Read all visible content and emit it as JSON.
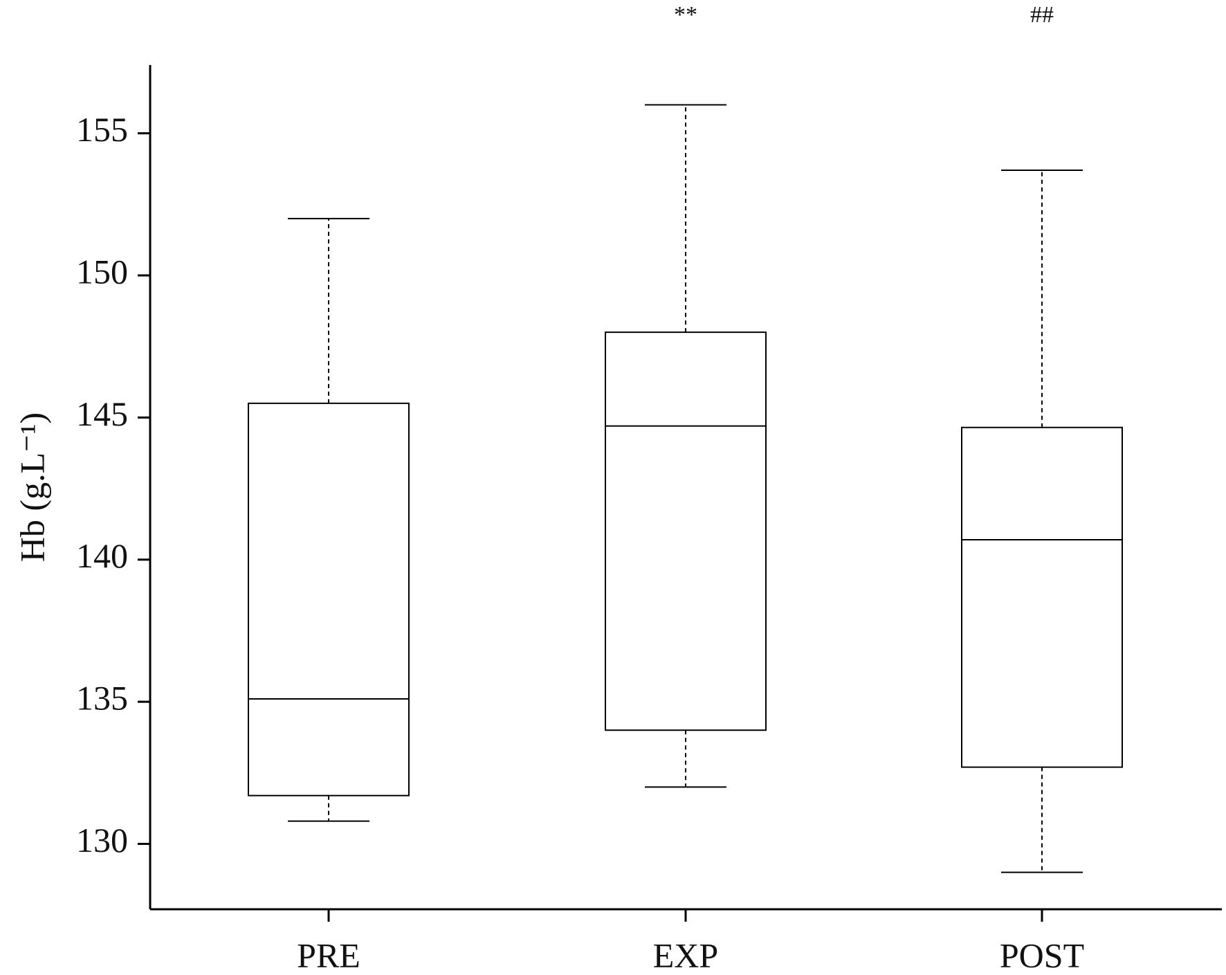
{
  "chart_data": {
    "type": "box",
    "y_label": "Hb (g.L⁻¹)",
    "categories": [
      "PRE",
      "EXP",
      "POST"
    ],
    "low": [
      130.8,
      132.0,
      129.0
    ],
    "q1": [
      131.7,
      134.0,
      132.7
    ],
    "median": [
      135.1,
      144.7,
      140.7
    ],
    "q3": [
      145.5,
      148.0,
      144.65
    ],
    "high": [
      152.0,
      156.0,
      153.7
    ],
    "annotations": [
      {
        "text": "**",
        "category": "EXP"
      },
      {
        "text": "##",
        "category": "POST"
      }
    ],
    "color": "#000000",
    "ylim": [
      127.7,
      157.4
    ],
    "yticks": [
      130,
      135,
      140,
      145,
      150,
      155
    ],
    "grid": false
  }
}
